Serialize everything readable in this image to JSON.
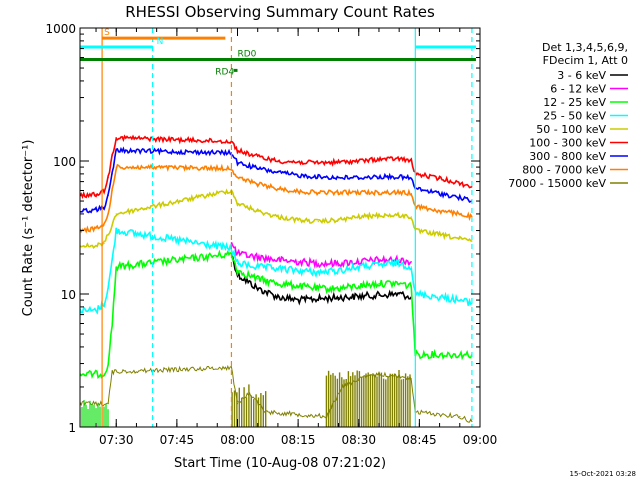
{
  "chart_data": {
    "type": "line",
    "title": "RHESSI Observing Summary Count Rates",
    "xlabel": "Start Time (10-Aug-08 07:21:02)",
    "ylabel": "Count Rate (s⁻¹ detector⁻¹)",
    "yscale": "log",
    "ylim": [
      1,
      1000
    ],
    "xlim": [
      "07:21:02",
      "09:00:00"
    ],
    "x_ticks": [
      "07:30",
      "07:45",
      "08:00",
      "08:15",
      "08:30",
      "08:45",
      "09:00"
    ],
    "y_ticks": [
      "1",
      "10",
      "100",
      "1000"
    ],
    "legend_header": [
      "Det 1,3,4,5,6,9,",
      "FDecim 1, Att 0"
    ],
    "legend_position": "right",
    "timestamp": "15-Oct-2021 03:28",
    "series": [
      {
        "name": "3 - 6 keV",
        "color": "#000000",
        "x": [
          "07:58:30",
          "08:00",
          "08:05",
          "08:10",
          "08:15",
          "08:20",
          "08:25",
          "08:30",
          "08:35",
          "08:40",
          "08:43"
        ],
        "y": [
          20,
          14,
          11,
          9.5,
          9,
          9.2,
          9.4,
          9.6,
          9.8,
          10,
          9.5
        ]
      },
      {
        "name": "6 - 12 keV",
        "color": "#ff00ff",
        "x": [
          "07:58:30",
          "08:00",
          "08:05",
          "08:10",
          "08:15",
          "08:20",
          "08:25",
          "08:30",
          "08:35",
          "08:40",
          "08:43"
        ],
        "y": [
          24,
          20,
          19,
          18,
          17.5,
          17,
          17,
          17.5,
          18,
          18,
          17.5
        ]
      },
      {
        "name": "12 - 25 keV",
        "color": "#00ff00",
        "x": [
          "07:21:02",
          "07:27",
          "07:28",
          "07:29",
          "07:30",
          "07:58:30",
          "08:00",
          "08:05",
          "08:10",
          "08:15",
          "08:20",
          "08:25",
          "08:30",
          "08:35",
          "08:40",
          "08:43",
          "08:44",
          "08:50",
          "08:55",
          "08:58"
        ],
        "y": [
          2.5,
          2.5,
          3,
          6,
          16,
          20,
          15,
          13,
          12,
          11.5,
          11,
          11,
          11.5,
          12,
          12,
          11.5,
          3.5,
          3.5,
          3.5,
          3.5
        ]
      },
      {
        "name": "25 - 50 keV",
        "color": "#00ffff",
        "x": [
          "07:21:02",
          "07:25",
          "07:27",
          "07:28",
          "07:29",
          "07:30",
          "07:58:30",
          "08:00",
          "08:05",
          "08:10",
          "08:15",
          "08:20",
          "08:25",
          "08:30",
          "08:35",
          "08:40",
          "08:43",
          "08:44",
          "08:50",
          "08:55",
          "08:58"
        ],
        "y": [
          7.5,
          7.5,
          8.5,
          11,
          18,
          30,
          22,
          17,
          16,
          15.5,
          15,
          14.5,
          15,
          16,
          16.5,
          17,
          16,
          10,
          9.5,
          9,
          8.5
        ]
      },
      {
        "name": "50 - 100 keV",
        "color": "#cccc00",
        "x": [
          "07:21:02",
          "07:25",
          "07:27",
          "07:28",
          "07:29",
          "07:30",
          "07:58:30",
          "08:00",
          "08:05",
          "08:10",
          "08:15",
          "08:20",
          "08:25",
          "08:30",
          "08:35",
          "08:40",
          "08:43",
          "08:44",
          "08:50",
          "08:55",
          "08:58"
        ],
        "y": [
          23,
          23,
          24,
          28,
          33,
          40,
          60,
          48,
          42,
          38,
          36,
          35,
          36,
          38,
          39,
          39,
          38,
          30,
          28,
          26,
          25
        ]
      },
      {
        "name": "100 - 300 keV",
        "color": "#ff0000",
        "x": [
          "07:21:02",
          "07:25",
          "07:27",
          "07:28",
          "07:29",
          "07:30",
          "07:58:30",
          "08:00",
          "08:05",
          "08:10",
          "08:15",
          "08:20",
          "08:25",
          "08:30",
          "08:35",
          "08:40",
          "08:43",
          "08:44",
          "08:50",
          "08:55",
          "08:58"
        ],
        "y": [
          55,
          56,
          60,
          75,
          110,
          150,
          140,
          120,
          108,
          100,
          98,
          97,
          98,
          100,
          103,
          104,
          100,
          80,
          74,
          68,
          64
        ]
      },
      {
        "name": "300 - 800 keV",
        "color": "#0000ff",
        "x": [
          "07:21:02",
          "07:25",
          "07:27",
          "07:28",
          "07:29",
          "07:30",
          "07:58:30",
          "08:00",
          "08:05",
          "08:10",
          "08:15",
          "08:20",
          "08:25",
          "08:30",
          "08:35",
          "08:40",
          "08:43",
          "08:44",
          "08:50",
          "08:55",
          "08:58"
        ],
        "y": [
          42,
          43,
          45,
          55,
          80,
          120,
          115,
          97,
          88,
          82,
          78,
          76,
          75,
          75,
          76,
          76,
          74,
          62,
          57,
          53,
          50
        ]
      },
      {
        "name": "800 - 7000 keV",
        "color": "#ff8000",
        "x": [
          "07:21:02",
          "07:25",
          "07:27",
          "07:28",
          "07:29",
          "07:30",
          "07:58:30",
          "08:00",
          "08:05",
          "08:10",
          "08:15",
          "08:20",
          "08:25",
          "08:30",
          "08:35",
          "08:40",
          "08:43",
          "08:44",
          "08:50",
          "08:55",
          "08:58"
        ],
        "y": [
          30,
          31,
          33,
          40,
          60,
          90,
          88,
          75,
          67,
          62,
          59,
          58,
          58,
          58,
          58,
          58,
          57,
          46,
          42,
          40,
          38
        ]
      },
      {
        "name": "7000 - 15000 keV",
        "color": "#808000",
        "x": [
          "07:21:02",
          "07:28",
          "07:29",
          "07:58:30",
          "08:00",
          "08:03",
          "08:07",
          "08:22",
          "08:26",
          "08:30",
          "08:35",
          "08:40",
          "08:43",
          "08:44",
          "08:55",
          "08:58"
        ],
        "y": [
          1.5,
          1.5,
          2.6,
          2.8,
          1.5,
          1.8,
          1.3,
          1.2,
          2.0,
          2.3,
          2.5,
          2.4,
          2.3,
          1.3,
          1.2,
          1.1
        ]
      }
    ],
    "flags": [
      {
        "name": "S",
        "color": "#ff8000",
        "y": 840,
        "x": [
          "07:26:30",
          "07:57:00"
        ],
        "label_x": "07:27:00"
      },
      {
        "name": "N",
        "color": "#00ffff",
        "y": 720,
        "x": [
          "07:21:02",
          "07:39:00"
        ],
        "label_x": "07:40:00"
      },
      {
        "name": "N",
        "color": "#00ffff",
        "y": 720,
        "x": [
          "08:44:00",
          "08:59:00"
        ],
        "label_x": ""
      },
      {
        "name": "RD0",
        "color": "#008000",
        "y": 580,
        "x": [
          "07:21:02",
          "08:59:00"
        ],
        "label_x": "08:00:00"
      },
      {
        "name": "RD4",
        "color": "#008000",
        "y": 480,
        "x": [
          "07:59:00",
          "08:00:00"
        ],
        "label_x": "07:54:30"
      }
    ],
    "vlines": [
      {
        "color": "#ff8000",
        "style": "solid",
        "x": "07:26:30"
      },
      {
        "color": "#00ffff",
        "style": "dashed",
        "x": "07:39:00"
      },
      {
        "color": "#ff8000",
        "style": "dashed",
        "x": "07:58:30"
      },
      {
        "color": "#00ffff",
        "style": "solid",
        "x": "08:44:00"
      },
      {
        "color": "#00ffff",
        "style": "dashed",
        "x": "08:58:00"
      }
    ]
  }
}
